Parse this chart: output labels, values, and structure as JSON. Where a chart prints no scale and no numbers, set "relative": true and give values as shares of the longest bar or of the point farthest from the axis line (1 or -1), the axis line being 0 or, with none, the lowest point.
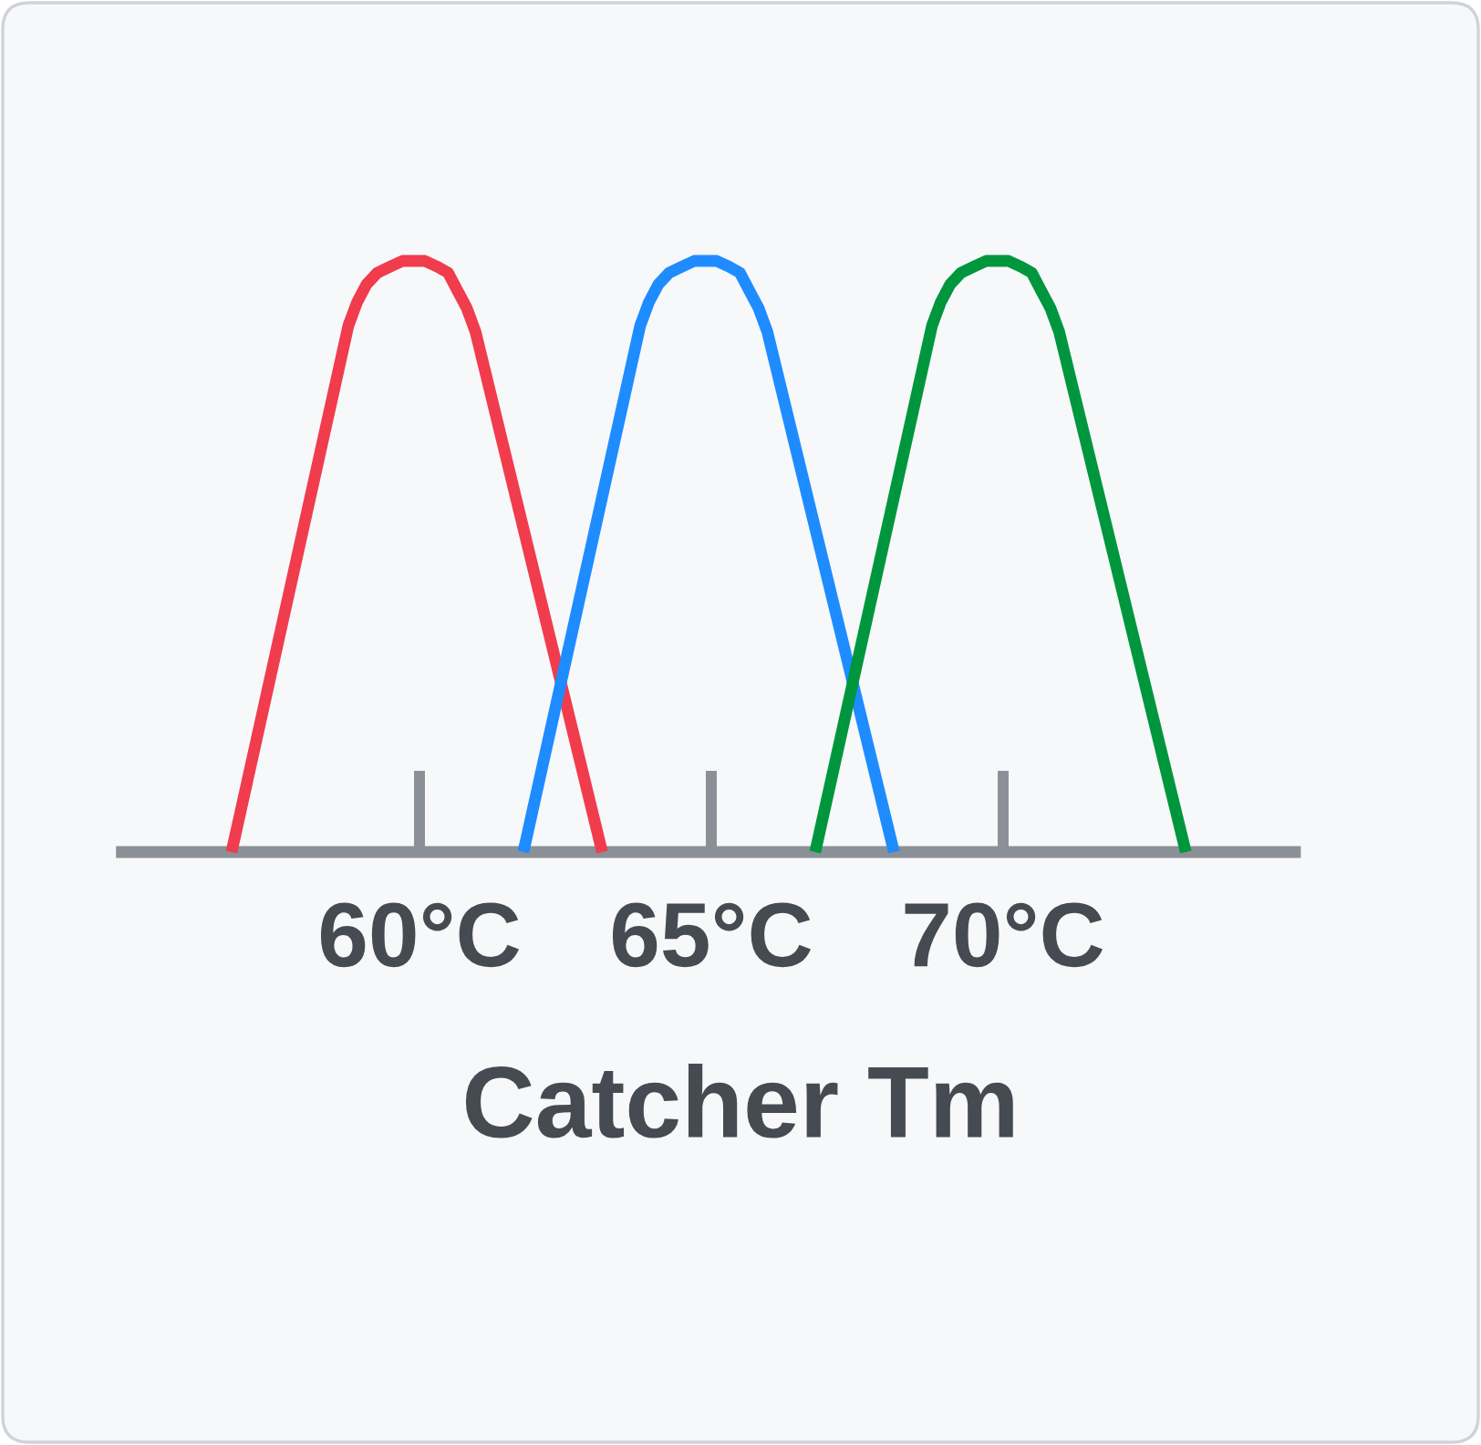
{
  "chart_data": {
    "type": "line",
    "relative": true,
    "xlabel": "Catcher Tm",
    "xlim": [
      54.8,
      75.1
    ],
    "xticks": [
      {
        "value": 60,
        "label": "60°C"
      },
      {
        "value": 65,
        "label": "65°C"
      },
      {
        "value": 70,
        "label": "70°C"
      }
    ],
    "series": [
      {
        "color": "#f03c4c",
        "x": [
          56.78,
          58.78,
          58.93,
          59.09,
          59.28,
          59.49,
          59.71,
          59.9,
          60.09,
          60.31,
          60.49,
          60.65,
          60.81,
          60.96,
          63.13
        ],
        "values": [
          0,
          0.89,
          0.93,
          0.96,
          0.98,
          0.99,
          1,
          1,
          1,
          0.99,
          0.98,
          0.95,
          0.92,
          0.88,
          0
        ]
      },
      {
        "color": "#1e8cff",
        "x": [
          61.78,
          63.78,
          63.93,
          64.09,
          64.28,
          64.49,
          64.71,
          64.9,
          65.09,
          65.31,
          65.49,
          65.65,
          65.81,
          65.96,
          68.13
        ],
        "values": [
          0,
          0.89,
          0.93,
          0.96,
          0.98,
          0.99,
          1,
          1,
          1,
          0.99,
          0.98,
          0.95,
          0.92,
          0.88,
          0
        ]
      },
      {
        "color": "#00963e",
        "x": [
          66.78,
          68.78,
          68.93,
          69.09,
          69.28,
          69.49,
          69.71,
          69.9,
          70.09,
          70.31,
          70.49,
          70.65,
          70.81,
          70.96,
          73.13
        ],
        "values": [
          0,
          0.89,
          0.93,
          0.96,
          0.98,
          0.99,
          1,
          1,
          1,
          0.99,
          0.98,
          0.95,
          0.92,
          0.88,
          0
        ]
      }
    ]
  }
}
